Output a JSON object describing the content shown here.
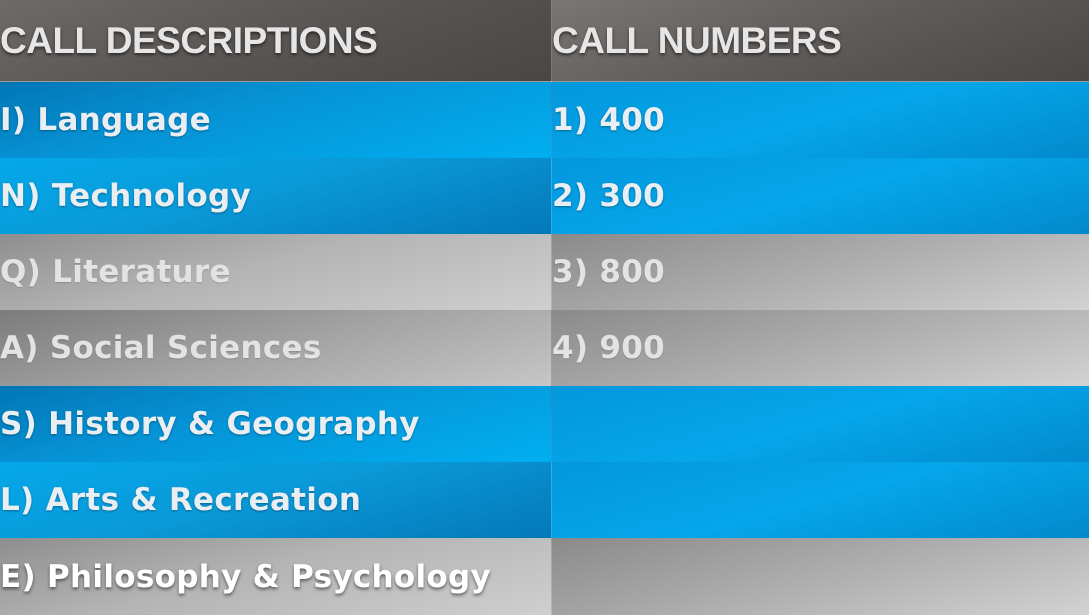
{
  "headers": {
    "descriptions": "CALL DESCRIPTIONS",
    "numbers": "CALL NUMBERS"
  },
  "rows": [
    {
      "description": "I) Language",
      "number": "1) 400",
      "style": "blue"
    },
    {
      "description": "N) Technology",
      "number": "2) 300",
      "style": "blue"
    },
    {
      "description": "Q) Literature",
      "number": "3) 800",
      "style": "gray"
    },
    {
      "description": "A) Social Sciences",
      "number": "4) 900",
      "style": "gray"
    },
    {
      "description": "S) History & Geography",
      "number": "",
      "style": "blue"
    },
    {
      "description": "L) Arts & Recreation",
      "number": "",
      "style": "blue"
    },
    {
      "description": "E) Philosophy & Psychology",
      "number": "",
      "style": "gray"
    }
  ],
  "colors": {
    "header_gray": "#5b5755",
    "row_blue": "#0693d6",
    "row_gray": "#b4b4b4",
    "text_light": "#e9eef2"
  }
}
